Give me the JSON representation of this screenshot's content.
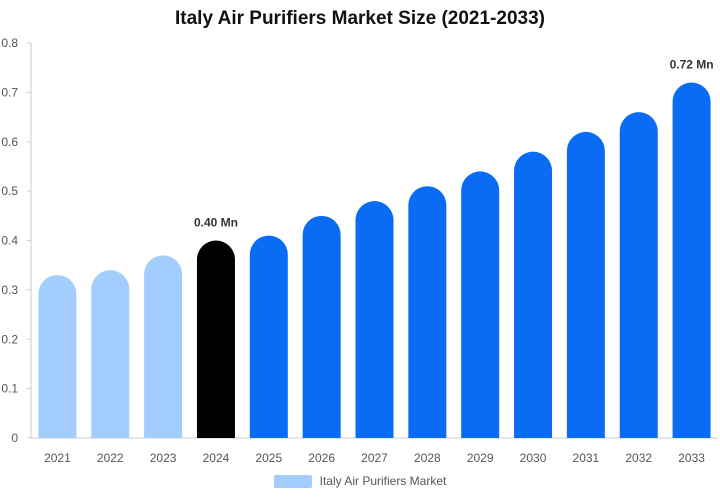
{
  "chart_data": {
    "type": "bar",
    "title": "Italy Air Purifiers Market Size (2021-2033)",
    "categories": [
      "2021",
      "2022",
      "2023",
      "2024",
      "2025",
      "2026",
      "2027",
      "2028",
      "2029",
      "2030",
      "2031",
      "2032",
      "2033"
    ],
    "values": [
      0.33,
      0.34,
      0.37,
      0.4,
      0.41,
      0.45,
      0.48,
      0.51,
      0.54,
      0.58,
      0.62,
      0.66,
      0.72
    ],
    "bar_colors": [
      "#a3cdfd",
      "#a3cdfd",
      "#a3cdfd",
      "#000000",
      "#0a6cf5",
      "#0a6cf5",
      "#0a6cf5",
      "#0a6cf5",
      "#0a6cf5",
      "#0a6cf5",
      "#0a6cf5",
      "#0a6cf5",
      "#0a6cf5"
    ],
    "data_labels": [
      {
        "category": "2024",
        "text": "0.40 Mn"
      },
      {
        "category": "2033",
        "text": "0.72 Mn"
      }
    ],
    "y_ticks": [
      "0",
      "0.1",
      "0.2",
      "0.3",
      "0.4",
      "0.5",
      "0.6",
      "0.7",
      "0.8"
    ],
    "ylim": [
      0,
      0.8
    ],
    "grid": false,
    "legend": {
      "position": "bottom",
      "entries": [
        {
          "label": "Italy Air Purifiers Market",
          "color": "#a3cdfd"
        }
      ]
    }
  }
}
